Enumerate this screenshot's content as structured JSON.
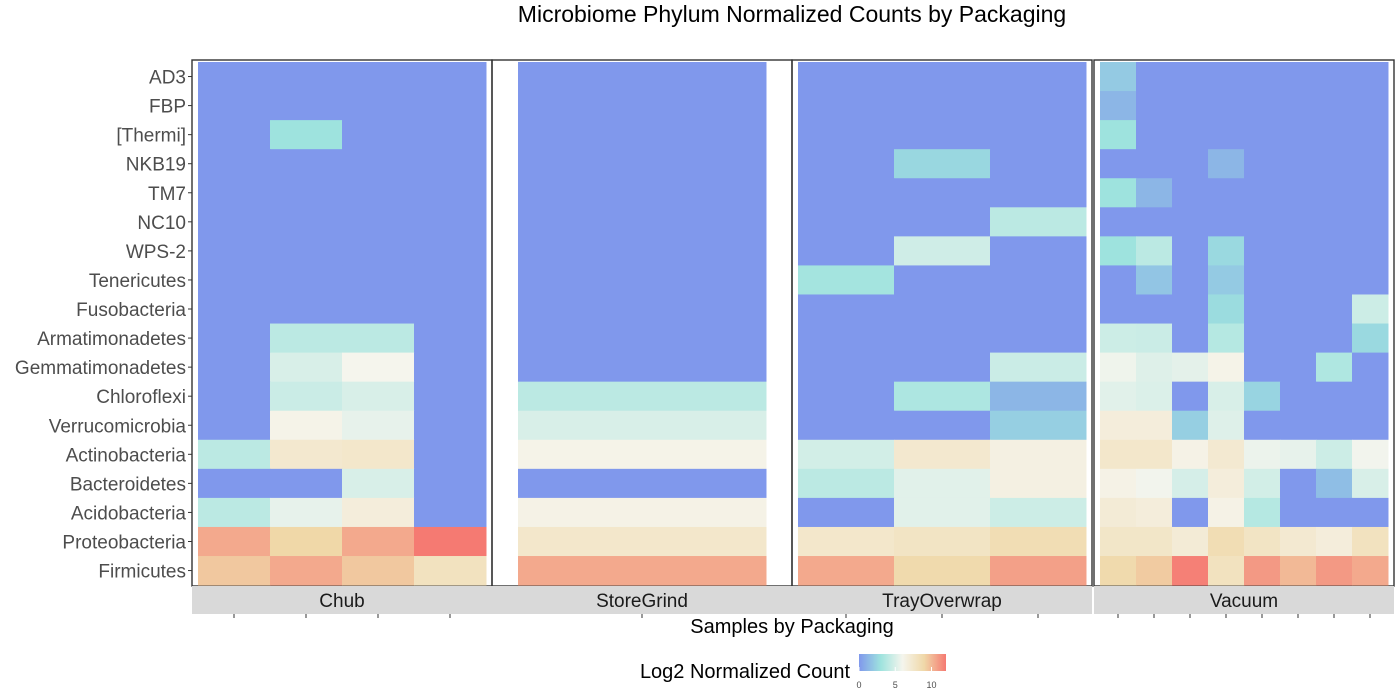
{
  "chart_data": {
    "type": "heatmap",
    "title": "Microbiome Phylum Normalized Counts by Packaging",
    "xlabel": "Samples by Packaging",
    "ylabel": "",
    "legend": {
      "title": "Log2 Normalized Count",
      "ticks": [
        "0",
        "5",
        "10"
      ],
      "tick_values": [
        0,
        5,
        10
      ],
      "range": [
        0,
        12
      ],
      "colors": [
        "#8098EC",
        "#9EE3DE",
        "#F5F5ED",
        "#F0D8A8",
        "#F57A72"
      ],
      "placement": "bottom"
    },
    "rows": [
      "AD3",
      "FBP",
      "[Thermi]",
      "NKB19",
      "TM7",
      "NC10",
      "WPS-2",
      "Tenericutes",
      "Fusobacteria",
      "Armatimonadetes",
      "Gemmatimonadetes",
      "Chloroflexi",
      "Verrucomicrobia",
      "Actinobacteria",
      "Bacteroidetes",
      "Acidobacteria",
      "Proteobacteria",
      "Firmicutes"
    ],
    "facets": [
      {
        "name": "Chub",
        "samples": 4,
        "values": [
          [
            0,
            0,
            0,
            0
          ],
          [
            0,
            0,
            0,
            0
          ],
          [
            0,
            3,
            0,
            0
          ],
          [
            0,
            0,
            0,
            0
          ],
          [
            0,
            0,
            0,
            0
          ],
          [
            0,
            0,
            0,
            0
          ],
          [
            0,
            0,
            0,
            0
          ],
          [
            0,
            0,
            0,
            0
          ],
          [
            0,
            0,
            0,
            0
          ],
          [
            0,
            4,
            4,
            0
          ],
          [
            0,
            5,
            6,
            0
          ],
          [
            0,
            4.5,
            5,
            0
          ],
          [
            0,
            6.2,
            5.5,
            0
          ],
          [
            4,
            7.3,
            7.5,
            0
          ],
          [
            0,
            0,
            5,
            0
          ],
          [
            4,
            5.5,
            6.8,
            0
          ],
          [
            10.5,
            9,
            10.5,
            12
          ],
          [
            9.5,
            10.5,
            9.5,
            8
          ]
        ]
      },
      {
        "name": "StoreGrind",
        "samples": 1,
        "values": [
          [
            0
          ],
          [
            0
          ],
          [
            0
          ],
          [
            0
          ],
          [
            0
          ],
          [
            0
          ],
          [
            0
          ],
          [
            0
          ],
          [
            0
          ],
          [
            0
          ],
          [
            0
          ],
          [
            4
          ],
          [
            5
          ],
          [
            6.2
          ],
          [
            0
          ],
          [
            6.3
          ],
          [
            7.5
          ],
          [
            10.5
          ]
        ]
      },
      {
        "name": "TrayOverwrap",
        "samples": 3,
        "values": [
          [
            0,
            0,
            0
          ],
          [
            0,
            0,
            0
          ],
          [
            0,
            0,
            0
          ],
          [
            0,
            2.5,
            0
          ],
          [
            0,
            0,
            0
          ],
          [
            0,
            0,
            4
          ],
          [
            0,
            4.7,
            0
          ],
          [
            3.2,
            0,
            0
          ],
          [
            0,
            0,
            0
          ],
          [
            0,
            0,
            0
          ],
          [
            0,
            0,
            4.5
          ],
          [
            0,
            3.5,
            1.2
          ],
          [
            0,
            0,
            2.2
          ],
          [
            4.8,
            7.3,
            6.5
          ],
          [
            4,
            5.3,
            6.5
          ],
          [
            0,
            5.3,
            4.6
          ],
          [
            7.5,
            7.8,
            8.5
          ],
          [
            10.5,
            8.8,
            10.8
          ]
        ]
      },
      {
        "name": "Vacuum",
        "samples": 8,
        "values": [
          [
            2,
            0,
            0,
            0,
            0,
            0,
            0,
            0
          ],
          [
            1.2,
            0,
            0,
            0,
            0,
            0,
            0,
            0
          ],
          [
            3,
            0,
            0,
            0,
            0,
            0,
            0,
            0
          ],
          [
            0,
            0,
            0,
            1.2,
            0,
            0,
            0,
            0
          ],
          [
            3,
            1.2,
            0,
            0,
            0,
            0,
            0,
            0
          ],
          [
            0,
            0,
            0,
            0,
            0,
            0,
            0,
            0
          ],
          [
            3,
            4,
            0,
            2.6,
            0,
            0,
            0,
            0
          ],
          [
            0,
            1.8,
            0,
            2,
            0,
            0,
            0,
            0
          ],
          [
            0,
            0,
            0,
            2.7,
            0,
            0,
            0,
            4.6
          ],
          [
            4.6,
            4.5,
            0,
            3.8,
            0,
            0,
            0,
            2.6
          ],
          [
            5.8,
            5.2,
            5.4,
            6.2,
            0,
            0,
            3.6,
            0
          ],
          [
            5.3,
            5.1,
            0,
            5,
            2.4,
            0,
            0,
            0
          ],
          [
            6.8,
            6.8,
            2.2,
            5.2,
            0,
            0,
            0,
            0
          ],
          [
            7.5,
            7.5,
            6.3,
            7.2,
            5.7,
            5.5,
            4.6,
            5.9
          ],
          [
            6.3,
            5.9,
            4.9,
            6.8,
            4.8,
            0,
            1.5,
            5
          ],
          [
            7,
            6.8,
            0,
            6.3,
            3.8,
            0,
            0,
            0
          ],
          [
            7.6,
            7.6,
            7,
            8.5,
            7.8,
            7.2,
            6.8,
            8
          ],
          [
            8.8,
            9.4,
            11.8,
            8,
            11,
            10,
            11,
            10.5
          ]
        ]
      }
    ]
  }
}
